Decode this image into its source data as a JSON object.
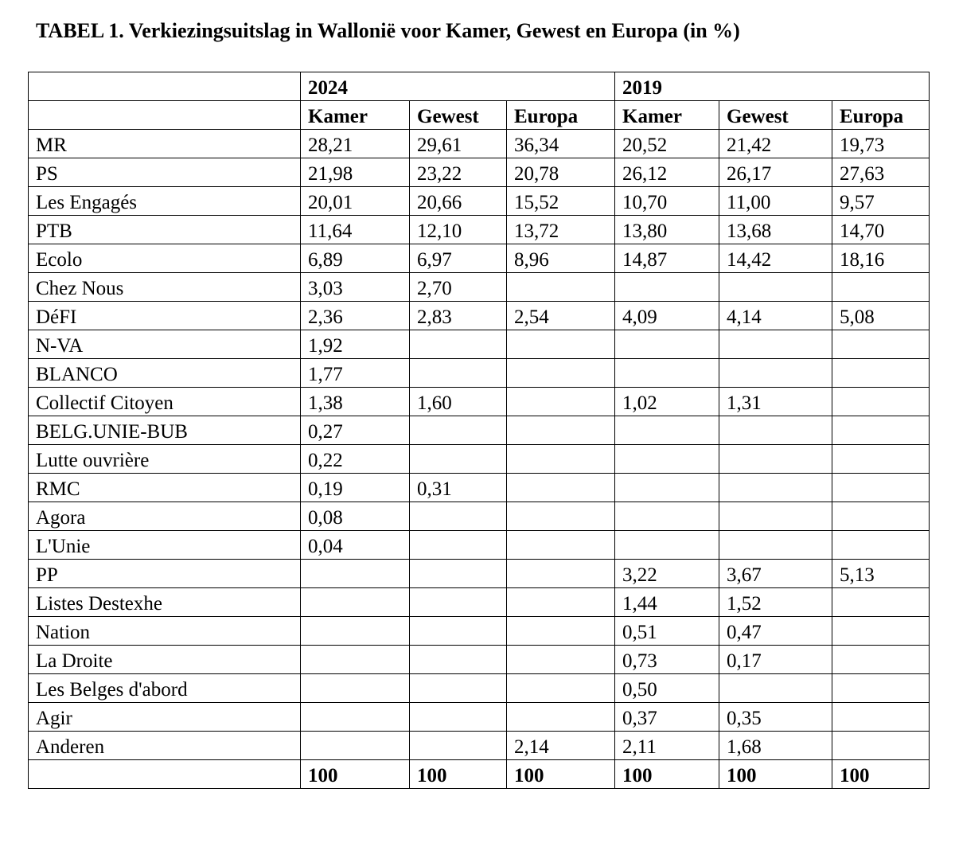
{
  "header": {
    "title": "TABEL 1. Verkiezingsuitslag in Wallonië voor Kamer, Gewest en Europa (in %)"
  },
  "table": {
    "years": [
      "2024",
      "2019"
    ],
    "columns": [
      "Kamer",
      "Gewest",
      "Europa",
      "Kamer",
      "Gewest",
      "Europa"
    ],
    "rows": [
      [
        "MR",
        "28,21",
        "29,61",
        "36,34",
        "20,52",
        "21,42",
        "19,73"
      ],
      [
        "PS",
        "21,98",
        "23,22",
        "20,78",
        "26,12",
        "26,17",
        "27,63"
      ],
      [
        "Les Engagés",
        "20,01",
        "20,66",
        "15,52",
        "10,70",
        "11,00",
        "9,57"
      ],
      [
        "PTB",
        "11,64",
        "12,10",
        "13,72",
        "13,80",
        "13,68",
        "14,70"
      ],
      [
        "Ecolo",
        "6,89",
        "6,97",
        "8,96",
        "14,87",
        "14,42",
        "18,16"
      ],
      [
        "Chez Nous",
        "3,03",
        "2,70",
        null,
        null,
        null,
        null
      ],
      [
        "DéFI",
        "2,36",
        "2,83",
        "2,54",
        "4,09",
        "4,14",
        "5,08"
      ],
      [
        "N-VA",
        "1,92",
        null,
        null,
        null,
        null,
        null
      ],
      [
        "BLANCO",
        "1,77",
        null,
        null,
        null,
        null,
        null
      ],
      [
        "Collectif Citoyen",
        "1,38",
        "1,60",
        null,
        "1,02",
        "1,31",
        null
      ],
      [
        "BELG.UNIE-BUB",
        "0,27",
        null,
        null,
        null,
        null,
        null
      ],
      [
        "Lutte ouvrière",
        "0,22",
        null,
        null,
        null,
        null,
        null
      ],
      [
        "RMC",
        "0,19",
        "0,31",
        null,
        null,
        null,
        null
      ],
      [
        "Agora",
        "0,08",
        null,
        null,
        null,
        null,
        null
      ],
      [
        "L'Unie",
        "0,04",
        null,
        null,
        null,
        null,
        null
      ],
      [
        "PP",
        null,
        null,
        null,
        "3,22",
        "3,67",
        "5,13"
      ],
      [
        "Listes Destexhe",
        null,
        null,
        null,
        "1,44",
        "1,52",
        null
      ],
      [
        "Nation",
        null,
        null,
        null,
        "0,51",
        "0,47",
        null
      ],
      [
        "La Droite",
        null,
        null,
        null,
        "0,73",
        "0,17",
        null
      ],
      [
        "Les Belges d'abord",
        null,
        null,
        null,
        "0,50",
        null,
        null
      ],
      [
        "Agir",
        null,
        null,
        null,
        "0,37",
        "0,35",
        null
      ],
      [
        "Anderen",
        null,
        null,
        "2,14",
        "2,11",
        "1,68",
        null
      ]
    ],
    "total": [
      "100",
      "100",
      "100",
      "100",
      "100",
      "100"
    ]
  }
}
